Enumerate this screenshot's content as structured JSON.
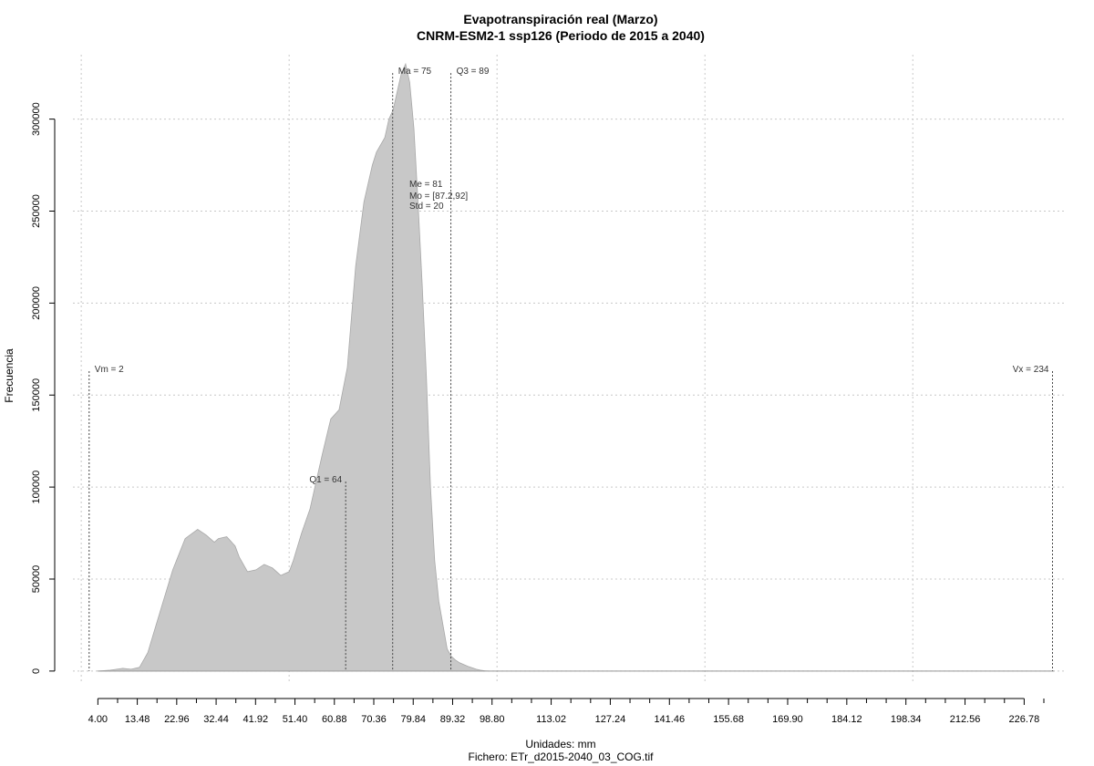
{
  "chart_data": {
    "type": "area",
    "title": "Evapotranspiración real (Marzo)",
    "subtitle": "CNRM-ESM2-1 ssp126 (Periodo de 2015 a 2040)",
    "xlabel": "Unidades: mm",
    "ylabel": "Frecuencia",
    "file_label": "Fichero: ETr_d2015-2040_03_COG.tif",
    "xlim": [
      -2,
      237
    ],
    "ylim": [
      -7000,
      335000
    ],
    "fill_color": "#c8c8c8",
    "grid": true,
    "x_ticks": [
      4.0,
      13.48,
      22.96,
      32.44,
      41.92,
      51.4,
      60.88,
      70.36,
      79.84,
      89.32,
      98.8,
      113.02,
      127.24,
      141.46,
      155.68,
      169.9,
      184.12,
      198.34,
      212.56,
      226.78
    ],
    "x_tick_labels": [
      "4.00",
      "13.48",
      "22.96",
      "32.44",
      "41.92",
      "51.40",
      "60.88",
      "70.36",
      "79.84",
      "89.32",
      "98.80",
      "113.02",
      "127.24",
      "141.46",
      "155.68",
      "169.90",
      "184.12",
      "198.34",
      "212.56",
      "226.78"
    ],
    "x_minor_ticks": [
      8.74,
      18.22,
      27.7,
      37.18,
      46.66,
      56.14,
      65.62,
      75.1,
      84.58,
      94.06,
      103.54,
      108.28,
      117.76,
      122.5,
      131.98,
      136.72,
      146.2,
      150.94,
      160.42,
      165.16,
      174.64,
      179.38,
      188.86,
      193.6,
      203.08,
      207.82,
      217.3,
      222.04,
      231.52
    ],
    "y_ticks": [
      0,
      50000,
      100000,
      150000,
      200000,
      250000,
      300000
    ],
    "y_tick_labels": [
      "0",
      "50000",
      "100000",
      "150000",
      "200000",
      "250000",
      "300000"
    ],
    "x_grid": [
      0,
      50,
      100,
      150,
      200
    ],
    "series": [
      {
        "x": [
          4,
          7,
          10,
          12,
          14,
          16,
          18,
          20,
          22,
          25,
          28,
          30,
          32,
          33,
          35,
          37,
          38,
          40,
          42,
          44,
          46,
          48,
          50,
          51,
          53,
          55,
          56,
          58,
          60,
          62,
          64,
          66,
          68,
          70,
          71,
          73,
          74,
          75,
          76,
          77,
          78,
          79,
          80,
          81,
          82,
          83,
          84,
          85,
          86,
          87,
          88,
          89,
          90,
          91,
          92,
          93,
          94,
          95,
          96,
          97,
          98,
          99,
          100,
          101,
          102,
          104,
          106,
          108,
          110,
          112,
          113,
          114,
          116,
          118,
          121,
          125,
          130,
          140,
          150,
          170,
          200,
          234
        ],
        "y": [
          0,
          500,
          1500,
          1000,
          2000,
          10000,
          25000,
          40000,
          55000,
          72000,
          77000,
          74000,
          70000,
          72000,
          73000,
          68000,
          62000,
          54000,
          55000,
          58000,
          56000,
          52000,
          54000,
          60000,
          75000,
          88000,
          98000,
          118000,
          137000,
          142000,
          165000,
          220000,
          255000,
          275000,
          282000,
          290000,
          300000,
          305000,
          315000,
          325000,
          330000,
          320000,
          295000,
          255000,
          210000,
          160000,
          100000,
          60000,
          38000,
          25000,
          12000,
          8000,
          6000,
          4500,
          3500,
          2500,
          1800,
          1000,
          500,
          200,
          0,
          0,
          0,
          0,
          0,
          0,
          0,
          0,
          0,
          0,
          0,
          0,
          0,
          0,
          0,
          0,
          0,
          0,
          0,
          0,
          0,
          0
        ],
        "note": "density curve"
      }
    ],
    "markers": [
      {
        "x": 1.9,
        "y": 163000,
        "label": "Vm = 2",
        "anchor": "start"
      },
      {
        "x": 63.6,
        "y": 103000,
        "label": "Q1 = 64",
        "anchor": "end"
      },
      {
        "x": 74.9,
        "y": 325000,
        "label": "Ma = 75",
        "anchor": "start"
      },
      {
        "x": 88.9,
        "y": 325000,
        "label": "Q3 = 89",
        "anchor": "start"
      },
      {
        "x": 233.6,
        "y": 163000,
        "label": "Vx = 234",
        "anchor": "end"
      }
    ],
    "stats": [
      "Me = 81",
      "Mo = [87.2,92]",
      "Std = 20"
    ]
  }
}
